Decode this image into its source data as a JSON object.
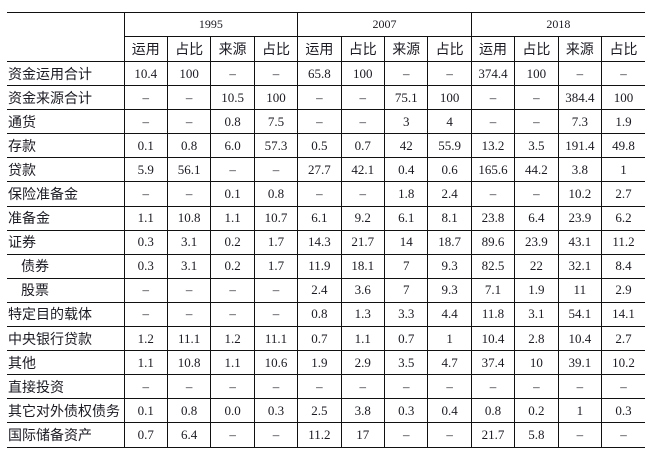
{
  "years": [
    "1995",
    "2007",
    "2018"
  ],
  "subheaders": [
    "运用",
    "占比",
    "来源",
    "占比"
  ],
  "rows": [
    {
      "label": "资金运用合计",
      "indent": false,
      "values": [
        "10.4",
        "100",
        "–",
        "–",
        "65.8",
        "100",
        "–",
        "–",
        "374.4",
        "100",
        "–",
        "–"
      ]
    },
    {
      "label": "资金来源合计",
      "indent": false,
      "values": [
        "–",
        "–",
        "10.5",
        "100",
        "–",
        "–",
        "75.1",
        "100",
        "–",
        "–",
        "384.4",
        "100"
      ]
    },
    {
      "label": "通货",
      "indent": false,
      "values": [
        "–",
        "–",
        "0.8",
        "7.5",
        "–",
        "–",
        "3",
        "4",
        "–",
        "–",
        "7.3",
        "1.9"
      ]
    },
    {
      "label": "存款",
      "indent": false,
      "values": [
        "0.1",
        "0.8",
        "6.0",
        "57.3",
        "0.5",
        "0.7",
        "42",
        "55.9",
        "13.2",
        "3.5",
        "191.4",
        "49.8"
      ]
    },
    {
      "label": "贷款",
      "indent": false,
      "values": [
        "5.9",
        "56.1",
        "–",
        "–",
        "27.7",
        "42.1",
        "0.4",
        "0.6",
        "165.6",
        "44.2",
        "3.8",
        "1"
      ]
    },
    {
      "label": "保险准备金",
      "indent": false,
      "values": [
        "–",
        "–",
        "0.1",
        "0.8",
        "–",
        "–",
        "1.8",
        "2.4",
        "–",
        "–",
        "10.2",
        "2.7"
      ]
    },
    {
      "label": "准备金",
      "indent": false,
      "values": [
        "1.1",
        "10.8",
        "1.1",
        "10.7",
        "6.1",
        "9.2",
        "6.1",
        "8.1",
        "23.8",
        "6.4",
        "23.9",
        "6.2"
      ]
    },
    {
      "label": "证券",
      "indent": false,
      "values": [
        "0.3",
        "3.1",
        "0.2",
        "1.7",
        "14.3",
        "21.7",
        "14",
        "18.7",
        "89.6",
        "23.9",
        "43.1",
        "11.2"
      ]
    },
    {
      "label": "债券",
      "indent": true,
      "values": [
        "0.3",
        "3.1",
        "0.2",
        "1.7",
        "11.9",
        "18.1",
        "7",
        "9.3",
        "82.5",
        "22",
        "32.1",
        "8.4"
      ]
    },
    {
      "label": "股票",
      "indent": true,
      "values": [
        "–",
        "–",
        "–",
        "–",
        "2.4",
        "3.6",
        "7",
        "9.3",
        "7.1",
        "1.9",
        "11",
        "2.9"
      ]
    },
    {
      "label": "特定目的载体",
      "indent": false,
      "values": [
        "–",
        "–",
        "–",
        "–",
        "0.8",
        "1.3",
        "3.3",
        "4.4",
        "11.8",
        "3.1",
        "54.1",
        "14.1"
      ]
    },
    {
      "label": "中央银行贷款",
      "indent": false,
      "values": [
        "1.2",
        "11.1",
        "1.2",
        "11.1",
        "0.7",
        "1.1",
        "0.7",
        "1",
        "10.4",
        "2.8",
        "10.4",
        "2.7"
      ]
    },
    {
      "label": "其他",
      "indent": false,
      "values": [
        "1.1",
        "10.8",
        "1.1",
        "10.6",
        "1.9",
        "2.9",
        "3.5",
        "4.7",
        "37.4",
        "10",
        "39.1",
        "10.2"
      ]
    },
    {
      "label": "直接投资",
      "indent": false,
      "values": [
        "–",
        "–",
        "–",
        "–",
        "–",
        "–",
        "–",
        "–",
        "–",
        "–",
        "–",
        "–"
      ]
    },
    {
      "label": "其它对外债权债务",
      "indent": false,
      "values": [
        "0.1",
        "0.8",
        "0.0",
        "0.3",
        "2.5",
        "3.8",
        "0.3",
        "0.4",
        "0.8",
        "0.2",
        "1",
        "0.3"
      ]
    },
    {
      "label": "国际储备资产",
      "indent": false,
      "values": [
        "0.7",
        "6.4",
        "–",
        "–",
        "11.2",
        "17",
        "–",
        "–",
        "21.7",
        "5.8",
        "–",
        "–"
      ]
    }
  ]
}
